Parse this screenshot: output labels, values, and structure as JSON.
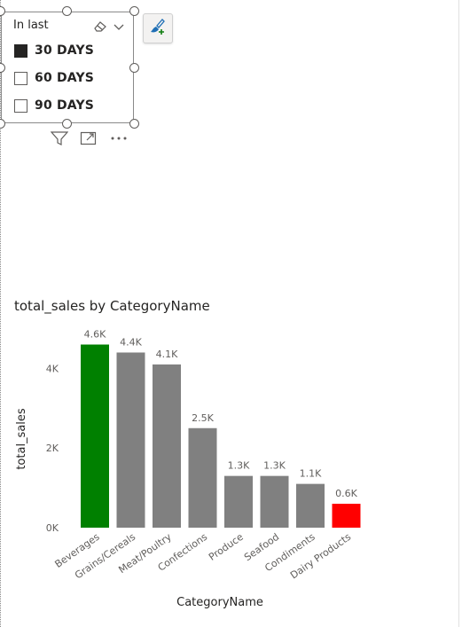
{
  "slicer": {
    "title": "In last",
    "options": [
      {
        "label": "30 DAYS",
        "checked": true
      },
      {
        "label": "60 DAYS",
        "checked": false
      },
      {
        "label": "90 DAYS",
        "checked": false
      }
    ],
    "icons": [
      "eraser-icon",
      "chevron-down-icon",
      "filter-icon",
      "focus-mode-icon",
      "more-options-icon"
    ]
  },
  "format_button": {
    "icon": "format-painter-icon",
    "accent": "#1f6fb5"
  },
  "chart": {
    "title": "total_sales by CategoryName"
  },
  "chart_data": {
    "type": "bar",
    "title": "total_sales by CategoryName",
    "xlabel": "CategoryName",
    "ylabel": "total_sales",
    "categories": [
      "Beverages",
      "Grains/Cereals",
      "Meat/Poultry",
      "Confections",
      "Produce",
      "Seafood",
      "Condiments",
      "Dairy Products"
    ],
    "values": [
      4600,
      4400,
      4100,
      2500,
      1300,
      1300,
      1100,
      600
    ],
    "data_labels": [
      "4.6K",
      "4.4K",
      "4.1K",
      "2.5K",
      "1.3K",
      "1.3K",
      "1.1K",
      "0.6K"
    ],
    "colors": [
      "#008000",
      "#808080",
      "#808080",
      "#808080",
      "#808080",
      "#808080",
      "#808080",
      "#ff0000"
    ],
    "yticks": [
      0,
      2000,
      4000
    ],
    "ytick_labels": [
      "0K",
      "2K",
      "4K"
    ],
    "ylim": [
      0,
      5000
    ],
    "grid": false,
    "legend": "none"
  }
}
